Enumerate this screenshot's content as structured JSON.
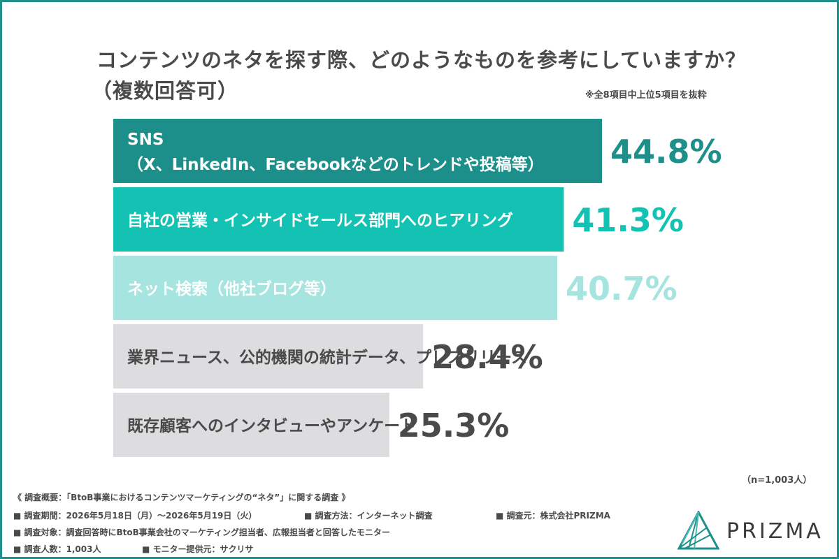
{
  "title_line1": "コンテンツのネタを探す際、どのようなものを参考にしていますか？",
  "title_line2": "（複数回答可）",
  "note": "※全8項目中上位5項目を抜粋",
  "chart_data": {
    "type": "bar",
    "orientation": "horizontal",
    "categories": [
      [
        "SNS",
        "（X、LinkedIn、Facebookなどのトレンドや投稿等）"
      ],
      [
        "自社の営業・インサイドセールス部門へのヒアリング"
      ],
      [
        "ネット検索（他社ブログ等）"
      ],
      [
        "業界ニュース、公的機関の統計データ、プレスリリース"
      ],
      [
        "既存顧客へのインタビューやアンケート"
      ]
    ],
    "values": [
      44.8,
      41.3,
      40.7,
      28.4,
      25.3
    ],
    "value_labels": [
      "44.8%",
      "41.3%",
      "40.7%",
      "28.4%",
      "25.3%"
    ],
    "bar_colors": [
      "#1d8f8a",
      "#13c2b3",
      "#a6e4df",
      "#dddcde",
      "#dddcde"
    ],
    "label_colors": [
      "#ffffff",
      "#ffffff",
      "#ffffff",
      "#4a4a4a",
      "#4a4a4a"
    ],
    "value_colors": [
      "#1f8f8a",
      "#13c2b3",
      "#a6e4df",
      "#4a4a4a",
      "#4a4a4a"
    ],
    "unit": "%"
  },
  "sample_size": "（n=1,003人）",
  "survey": {
    "heading": "《 調査概要：「BtoB事業におけるコンテンツマーケティングの“ネタ”」に関する調査 》",
    "period": "■ 調査期間：2026年5月18日（月）〜2026年5月19日（火）",
    "method": "■ 調査方法：インターネット調査",
    "organizer": "■ 調査元：株式会社PRIZMA",
    "target": "■ 調査対象：調査回答時にBtoB事業会社のマーケティング担当者、広報担当者と回答したモニター",
    "count": "■ 調査人数：1,003人",
    "provider": "■ モニター提供元：サクリサ"
  },
  "brand": "PRIZMA",
  "colors": {
    "frame": "#1f8f8a",
    "text": "#4a4a4a"
  }
}
